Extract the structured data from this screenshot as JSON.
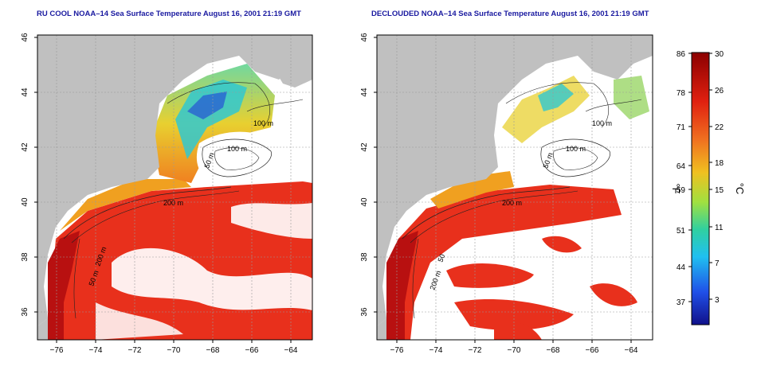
{
  "left_panel": {
    "title": "RU COOL NOAA–14 Sea Surface Temperature August 16, 2001 21:19 GMT",
    "contour_labels": [
      "100 m",
      "100 m",
      "50 m",
      "200 m",
      "200 m",
      "50 m"
    ]
  },
  "right_panel": {
    "title": "DECLOUDED NOAA–14 Sea Surface Temperature August 16, 2001 21:19 GMT",
    "contour_labels": [
      "100 m",
      "100 m",
      "50 m",
      "200 m",
      "50",
      "200 m"
    ]
  },
  "axes": {
    "lon_ticks": [
      "−76",
      "−74",
      "−72",
      "−70",
      "−68",
      "−66",
      "−64"
    ],
    "lat_ticks": [
      "46",
      "44",
      "42",
      "40",
      "38",
      "36"
    ]
  },
  "colorbar": {
    "fahrenheit_ticks": [
      "86",
      "78",
      "71",
      "64",
      "59",
      "51",
      "44",
      "37"
    ],
    "celsius_ticks": [
      "30",
      "26",
      "22",
      "18",
      "15",
      "11",
      "7",
      "3"
    ],
    "fahrenheit_unit": "°F",
    "celsius_unit": "°C"
  },
  "colors": {
    "land": "#c0c0c0",
    "cloud": "#ffffff",
    "warm": "#e8301c",
    "hot": "#b81010",
    "mid": "#f0a020",
    "cool": "#30c8d0",
    "cold": "#2040d8"
  }
}
